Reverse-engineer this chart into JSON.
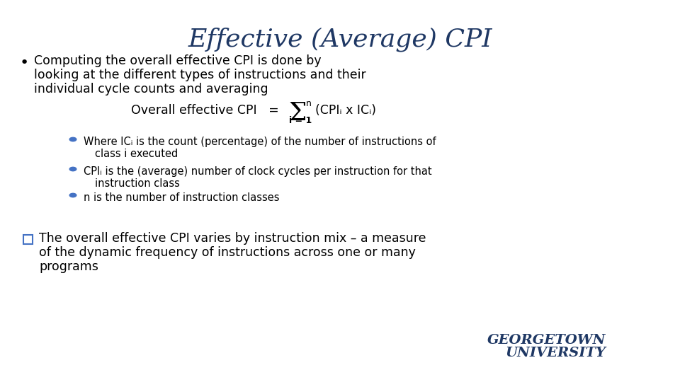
{
  "title": "Effective (Average) CPI",
  "title_color": "#1F3864",
  "title_fontsize": 26,
  "bg_color": "#FFFFFF",
  "body_color": "#000000",
  "bullet1_line1": "Computing the overall effective CPI is done by",
  "bullet1_line2": "looking at the different types of instructions and their",
  "bullet1_line3": "individual cycle counts and averaging",
  "formula_label": "Overall effective CPI   =",
  "formula_sum": "Σ",
  "formula_expr": "(CPIᵢ x ICᵢ)",
  "formula_super": "n",
  "formula_sub": "i = 1",
  "sub_bullet1_line1": "Where ICᵢ is the count (percentage) of the number of instructions of",
  "sub_bullet1_line2": "class i executed",
  "sub_bullet2_line1": "CPIᵢ is the (average) number of clock cycles per instruction for that",
  "sub_bullet2_line2": "instruction class",
  "sub_bullet3": "n is the number of instruction classes",
  "q_bullet_line1": "The overall effective CPI varies by instruction mix – a measure",
  "q_bullet_line2": "of the dynamic frequency of instructions across one or many",
  "q_bullet_line3": "programs",
  "georgetown_line1": "GEORGETOWN",
  "georgetown_line2": "UNIVERSITY",
  "georgetown_color": "#1F3864",
  "bullet_dot_color": "#4472C4",
  "q_box_color": "#4472C4"
}
